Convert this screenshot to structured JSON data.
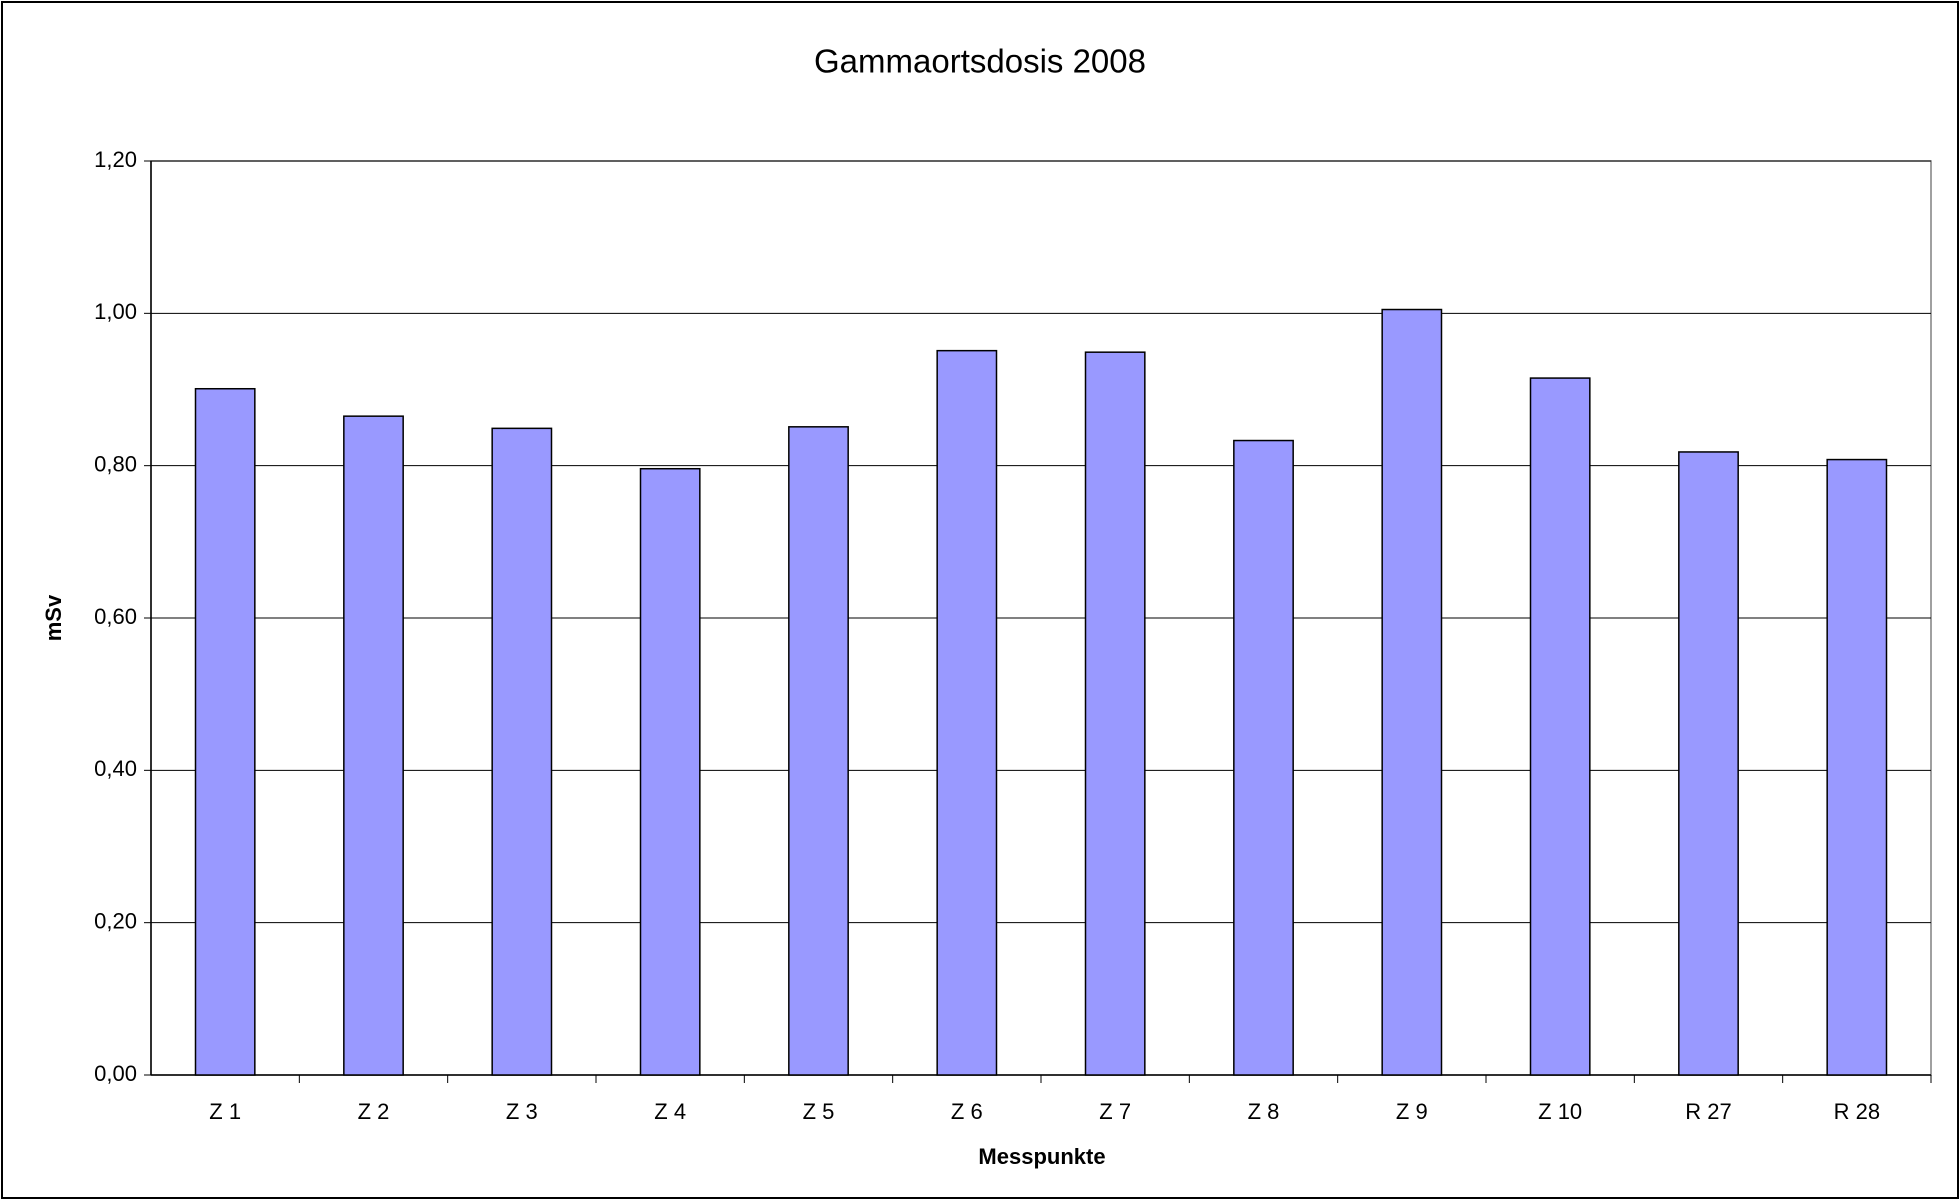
{
  "chart_data": {
    "type": "bar",
    "title": "Gammaortsdosis 2008",
    "x_label": "Messpunkte",
    "y_label": "mSv",
    "categories": [
      "Z 1",
      "Z 2",
      "Z 3",
      "Z 4",
      "Z 5",
      "Z 6",
      "Z 7",
      "Z 8",
      "Z 9",
      "Z 10",
      "R 27",
      "R 28"
    ],
    "values": [
      0.901,
      0.865,
      0.849,
      0.796,
      0.851,
      0.951,
      0.949,
      0.833,
      1.005,
      0.915,
      0.818,
      0.808
    ],
    "color": "#9999ff",
    "ylim": [
      0,
      1.2
    ],
    "yticks": [
      {
        "value": 0,
        "label": "0,00"
      },
      {
        "value": 0.2,
        "label": "0,20"
      },
      {
        "value": 0.4,
        "label": "0,40"
      },
      {
        "value": 0.6,
        "label": "0,60"
      },
      {
        "value": 0.8,
        "label": "0,80"
      },
      {
        "value": 1.0,
        "label": "1,00"
      },
      {
        "value": 1.2,
        "label": "1,20"
      }
    ],
    "grid": true
  }
}
